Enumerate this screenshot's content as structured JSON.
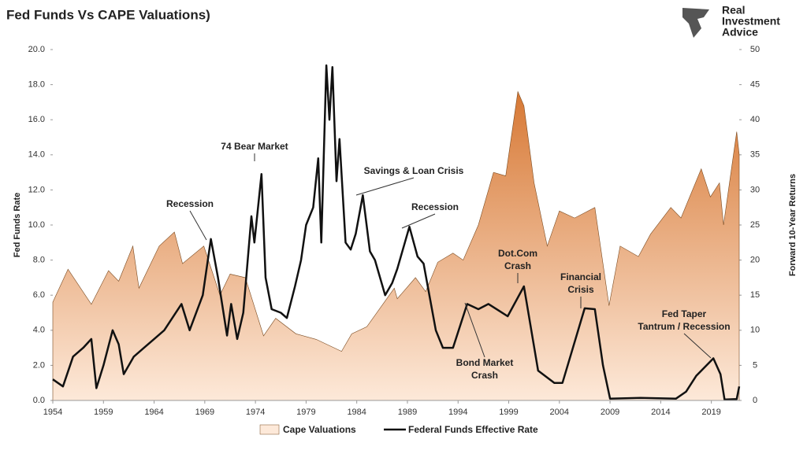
{
  "chart_data": {
    "type": "area-line",
    "title": "Fed Funds Vs CAPE Valuations)",
    "logo": [
      "Real",
      "Investment",
      "Advice"
    ],
    "ylabel": "Fed Funds Rate",
    "y2label": "Forward 10-Year Returns",
    "xlim": [
      1954,
      2021.75
    ],
    "xticks": [
      1954,
      1959,
      1964,
      1969,
      1974,
      1979,
      1984,
      1989,
      1994,
      1999,
      2004,
      2009,
      2014,
      2019
    ],
    "ylim": [
      0,
      20
    ],
    "yticks": [
      {
        "value": 0,
        "label": "0.0"
      },
      {
        "value": 2,
        "label": "2.0"
      },
      {
        "value": 4,
        "label": "4.0"
      },
      {
        "value": 6,
        "label": "6.0"
      },
      {
        "value": 8,
        "label": "8.0"
      },
      {
        "value": 10,
        "label": "10.0"
      },
      {
        "value": 12,
        "label": "12.0"
      },
      {
        "value": 14,
        "label": "14.0"
      },
      {
        "value": 16,
        "label": "16.0"
      },
      {
        "value": 18,
        "label": "18.0"
      },
      {
        "value": 20,
        "label": "20.0"
      }
    ],
    "y2lim": [
      0,
      50
    ],
    "y2ticks": [
      0,
      5,
      10,
      15,
      20,
      25,
      30,
      35,
      40,
      45,
      50
    ],
    "series": [
      {
        "name": "Cape Valuations",
        "type": "area",
        "axis": "y2",
        "color": "#d2691e",
        "color_bottom": "#fde9d9",
        "x": [
          1954,
          1955.5,
          1957.8,
          1959.5,
          1960.5,
          1961.9,
          1962.5,
          1964.5,
          1966,
          1966.8,
          1968.9,
          1970.5,
          1971.5,
          1973,
          1974.8,
          1976,
          1978,
          1980,
          1982.5,
          1983.5,
          1985,
          1987.7,
          1988,
          1989.8,
          1990.8,
          1992,
          1993.5,
          1994.5,
          1996,
          1997.5,
          1998.7,
          1999.9,
          2000.5,
          2001.5,
          2002.8,
          2004,
          2005.5,
          2007.5,
          2008.9,
          2010,
          2011.8,
          2013,
          2015,
          2016,
          2018,
          2018.9,
          2019.8,
          2020.2,
          2021.5,
          2021.75
        ],
        "values": [
          14,
          18.7,
          13.7,
          18.5,
          17,
          22,
          16,
          22,
          24,
          19.5,
          22,
          15,
          18,
          17.5,
          9.2,
          11.7,
          9.5,
          8.7,
          7,
          9.5,
          10.5,
          16,
          14.5,
          17.5,
          15.5,
          19.7,
          21,
          20,
          25,
          32.5,
          32,
          44,
          42,
          31,
          22,
          27,
          26,
          27.5,
          13.5,
          22,
          20.5,
          23.7,
          27.5,
          26,
          33,
          29,
          31,
          25,
          38.3,
          35
        ]
      },
      {
        "name": "Federal Funds Effective Rate",
        "type": "line",
        "axis": "y",
        "color": "#111111",
        "x": [
          1954,
          1955,
          1956,
          1957,
          1957.8,
          1958.3,
          1959,
          1959.9,
          1960.5,
          1961,
          1962,
          1963,
          1964,
          1965,
          1966.7,
          1967.5,
          1968.8,
          1969.6,
          1970.3,
          1971.2,
          1971.6,
          1972.2,
          1972.8,
          1973.6,
          1973.9,
          1974.6,
          1975,
          1975.6,
          1976.5,
          1977.1,
          1977.9,
          1978.5,
          1979,
          1979.7,
          1980.2,
          1980.5,
          1981,
          1981.3,
          1981.6,
          1982,
          1982.3,
          1982.9,
          1983.4,
          1983.9,
          1984.6,
          1985.3,
          1985.8,
          1986.8,
          1987.5,
          1988,
          1989.2,
          1990,
          1990.6,
          1991.8,
          1992.5,
          1993.5,
          1994.9,
          1996,
          1997,
          1998.9,
          2000.5,
          2001.9,
          2003.5,
          2004.3,
          2006.5,
          2007.5,
          2008.3,
          2009,
          2012,
          2015.5,
          2016.5,
          2017.5,
          2019.2,
          2019.9,
          2020.3,
          2021.5,
          2021.75
        ],
        "values": [
          1.2,
          0.8,
          2.5,
          3.0,
          3.5,
          0.7,
          2.0,
          4.0,
          3.2,
          1.5,
          2.5,
          3.0,
          3.5,
          4.0,
          5.5,
          4.0,
          6.0,
          9.2,
          7.0,
          3.7,
          5.5,
          3.5,
          5.0,
          10.5,
          9.0,
          12.9,
          7.0,
          5.2,
          5.0,
          4.7,
          6.5,
          8.0,
          10.0,
          11.0,
          13.8,
          9.0,
          19.1,
          16.0,
          19.0,
          12.5,
          14.9,
          9.0,
          8.6,
          9.5,
          11.7,
          8.5,
          8.0,
          6.0,
          6.7,
          7.5,
          9.9,
          8.2,
          7.8,
          4.0,
          3.0,
          3.0,
          5.5,
          5.2,
          5.5,
          4.8,
          6.5,
          1.7,
          1.0,
          1.0,
          5.25,
          5.2,
          2.0,
          0.1,
          0.15,
          0.1,
          0.5,
          1.4,
          2.4,
          1.5,
          0.05,
          0.08,
          0.8
        ]
      }
    ],
    "annotations": [
      [
        "Recession"
      ],
      [
        "74 Bear Market"
      ],
      [
        "Savings & Loan Crisis"
      ],
      [
        "Recession"
      ],
      [
        "Dot.Com",
        "Crash"
      ],
      [
        "Financial",
        "Crisis"
      ],
      [
        "Fed Taper",
        "Tantrum / Recession"
      ],
      [
        "Bond Market",
        "Crash"
      ]
    ]
  }
}
